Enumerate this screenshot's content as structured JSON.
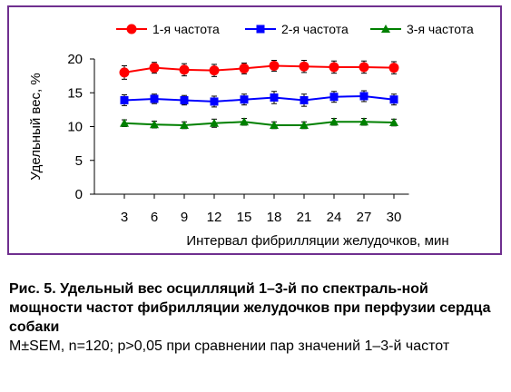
{
  "chart_data": {
    "type": "line",
    "x": [
      3,
      6,
      9,
      12,
      15,
      18,
      21,
      24,
      27,
      30
    ],
    "xlabel": "Интервал фибрилляции желудочков, мин",
    "ylabel": "Удельный вес, %",
    "ylim": [
      0,
      20
    ],
    "yticks": [
      0,
      5,
      10,
      15,
      20
    ],
    "grid": false,
    "legend_position": "top",
    "series": [
      {
        "name": "1-я частота",
        "color": "#ff0000",
        "marker": "circle",
        "values": [
          18.0,
          18.7,
          18.4,
          18.3,
          18.6,
          19.0,
          18.9,
          18.8,
          18.8,
          18.7
        ],
        "errors": [
          1.0,
          0.8,
          0.9,
          0.9,
          0.8,
          0.8,
          0.9,
          0.9,
          0.9,
          0.9
        ]
      },
      {
        "name": "2-я частота",
        "color": "#0000ff",
        "marker": "square",
        "values": [
          13.9,
          14.1,
          13.9,
          13.7,
          14.0,
          14.3,
          13.9,
          14.4,
          14.5,
          14.0
        ],
        "errors": [
          0.8,
          0.7,
          0.7,
          0.8,
          0.8,
          0.9,
          0.9,
          0.8,
          0.8,
          0.8
        ]
      },
      {
        "name": "3-я частота",
        "color": "#008000",
        "marker": "triangle",
        "values": [
          10.5,
          10.3,
          10.2,
          10.5,
          10.7,
          10.2,
          10.2,
          10.7,
          10.7,
          10.6
        ],
        "errors": [
          0.5,
          0.5,
          0.5,
          0.6,
          0.5,
          0.5,
          0.5,
          0.5,
          0.5,
          0.5
        ]
      }
    ]
  },
  "caption": {
    "title": "Рис. 5. Удельный вес осцилляций 1–3-й по спектраль-ной мощности частот фибрилляции желудочков при перфузии сердца собаки",
    "note": "M±SEM, n=120; p>0,05 при сравнении пар значений 1–3-й частот"
  }
}
